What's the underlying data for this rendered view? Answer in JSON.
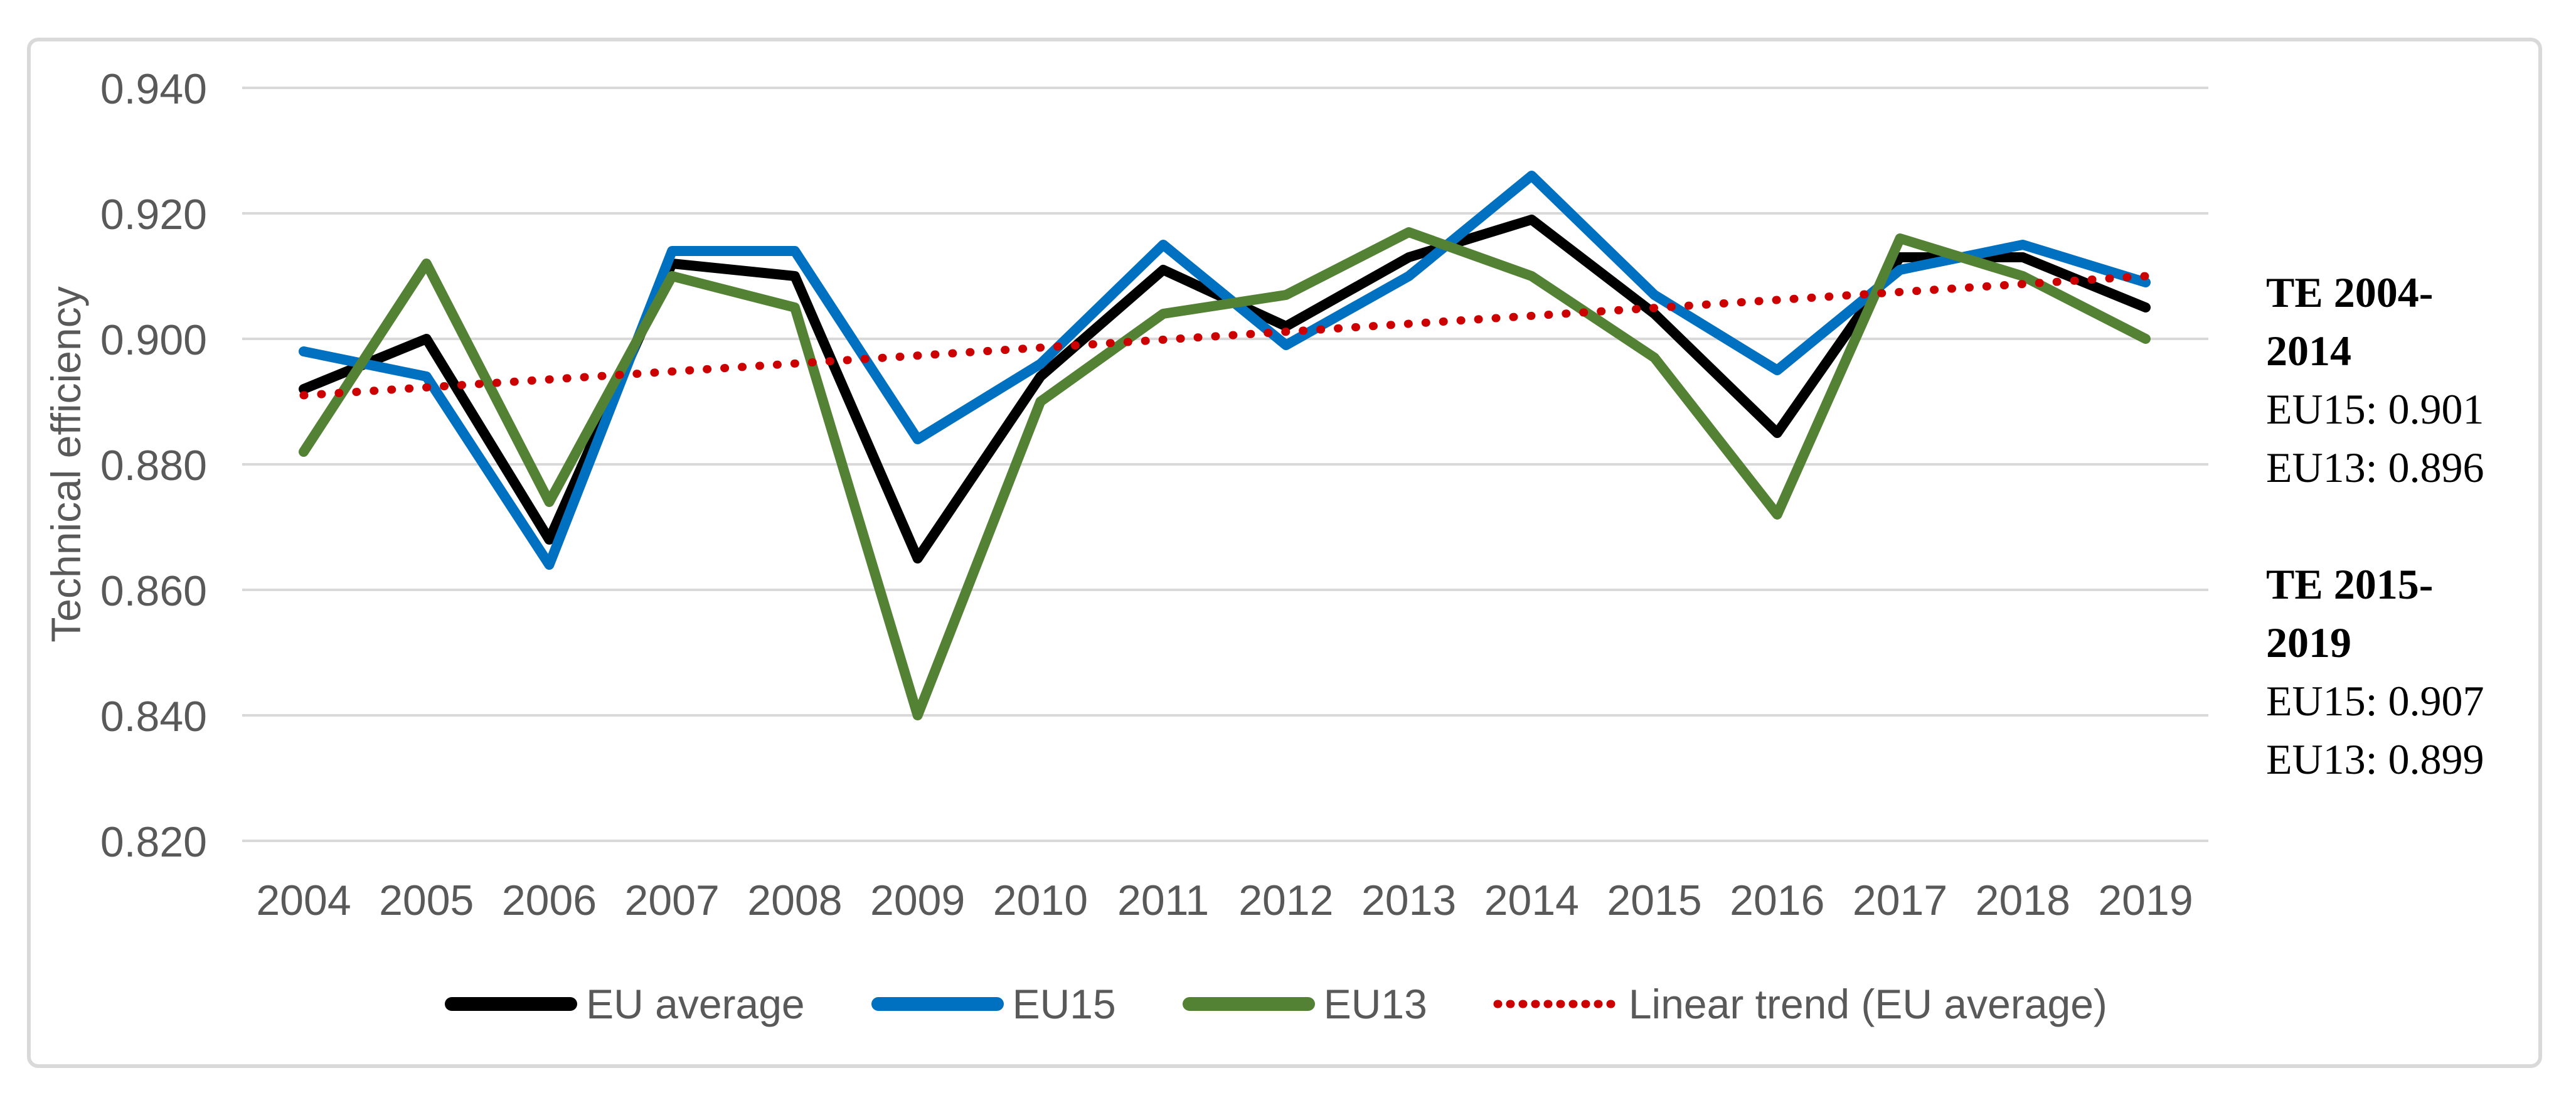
{
  "colors": {
    "background": "#FFFFFF",
    "frame": "#D9D9D9",
    "grid": "#D9D9D9",
    "axis_text": "#595959",
    "eu_average": "#000000",
    "eu15": "#0070C0",
    "eu13": "#548235",
    "trend": "#CC0000"
  },
  "legend": {
    "items": [
      {
        "label": "EU average",
        "color": "#000000",
        "style": "solid"
      },
      {
        "label": "EU15",
        "color": "#0070C0",
        "style": "solid"
      },
      {
        "label": "EU13",
        "color": "#548235",
        "style": "solid"
      },
      {
        "label": "Linear trend (EU average)",
        "color": "#CC0000",
        "style": "dotted"
      }
    ]
  },
  "annotations": [
    {
      "heading_line1": "TE 2004-",
      "heading_line2": "2014",
      "value_lines": [
        "EU15: 0.901",
        "EU13: 0.896"
      ]
    },
    {
      "heading_line1": "TE 2015-",
      "heading_line2": "2019",
      "value_lines": [
        "EU15: 0.907",
        "EU13: 0.899"
      ]
    }
  ],
  "chart_data": {
    "type": "line",
    "title": "",
    "xlabel": "",
    "ylabel": "Technical efficiency",
    "x": [
      2004,
      2005,
      2006,
      2007,
      2008,
      2009,
      2010,
      2011,
      2012,
      2013,
      2014,
      2015,
      2016,
      2017,
      2018,
      2019
    ],
    "y_tick_labels": [
      "0.940",
      "0.920",
      "0.900",
      "0.880",
      "0.860",
      "0.840",
      "0.820"
    ],
    "ylim": [
      0.82,
      0.94
    ],
    "ytick_step": 0.02,
    "grid": true,
    "legend_position": "bottom",
    "series": [
      {
        "name": "EU average",
        "color": "#000000",
        "values": [
          0.892,
          0.9,
          0.868,
          0.912,
          0.91,
          0.865,
          0.894,
          0.911,
          0.902,
          0.913,
          0.919,
          0.904,
          0.885,
          0.913,
          0.913,
          0.905
        ]
      },
      {
        "name": "EU15",
        "color": "#0070C0",
        "values": [
          0.898,
          0.894,
          0.864,
          0.914,
          0.914,
          0.884,
          0.896,
          0.915,
          0.899,
          0.91,
          0.926,
          0.907,
          0.895,
          0.911,
          0.915,
          0.909
        ]
      },
      {
        "name": "EU13",
        "color": "#548235",
        "values": [
          0.882,
          0.912,
          0.874,
          0.91,
          0.905,
          0.84,
          0.89,
          0.904,
          0.907,
          0.917,
          0.91,
          0.897,
          0.872,
          0.916,
          0.91,
          0.9
        ]
      },
      {
        "name": "Linear trend (EU average)",
        "color": "#CC0000",
        "style": "dotted",
        "trend_endpoints": [
          0.891,
          0.91
        ]
      }
    ],
    "period_stats": [
      {
        "period": "TE 2004-2014",
        "EU15": 0.901,
        "EU13": 0.896
      },
      {
        "period": "TE 2015-2019",
        "EU15": 0.907,
        "EU13": 0.899
      }
    ]
  }
}
